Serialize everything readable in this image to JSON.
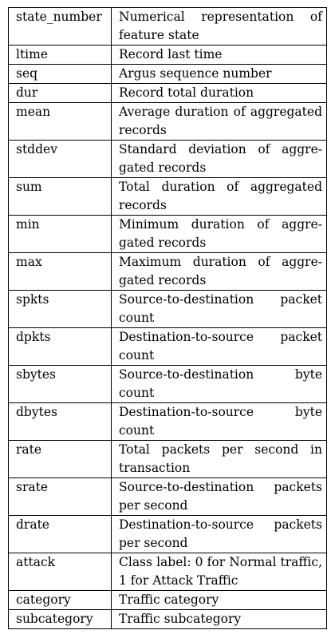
{
  "table": {
    "rows": [
      {
        "feature": "state_number",
        "description": "Numerical representation of feature state"
      },
      {
        "feature": "ltime",
        "description": "Record last time"
      },
      {
        "feature": "seq",
        "description": "Argus sequence number"
      },
      {
        "feature": "dur",
        "description": "Record total duration"
      },
      {
        "feature": "mean",
        "description": "Average duration of aggre­gated records"
      },
      {
        "feature": "stddev",
        "description": "Standard deviation of aggre­gated records"
      },
      {
        "feature": "sum",
        "description": "Total duration of aggregated records"
      },
      {
        "feature": "min",
        "description": "Minimum duration of aggre­gated records"
      },
      {
        "feature": "max",
        "description": "Maximum duration of aggre­gated records"
      },
      {
        "feature": "spkts",
        "description": "Source-to-destination packet count"
      },
      {
        "feature": "dpkts",
        "description": "Destination-to-source packet count"
      },
      {
        "feature": "sbytes",
        "description": "Source-to-destination byte count"
      },
      {
        "feature": "dbytes",
        "description": "Destination-to-source byte count"
      },
      {
        "feature": "rate",
        "description": "Total packets per second in transaction"
      },
      {
        "feature": "srate",
        "description": "Source-to-destination pack­ets per second"
      },
      {
        "feature": "drate",
        "description": "Destination-to-source pack­ets per second"
      },
      {
        "feature": "attack",
        "description": "Class label: 0 for Normal traffic, 1 for Attack Traffic"
      },
      {
        "feature": "category",
        "description": "Traffic category"
      },
      {
        "feature": "subcategory",
        "description": "Traffic subcategory"
      }
    ]
  }
}
